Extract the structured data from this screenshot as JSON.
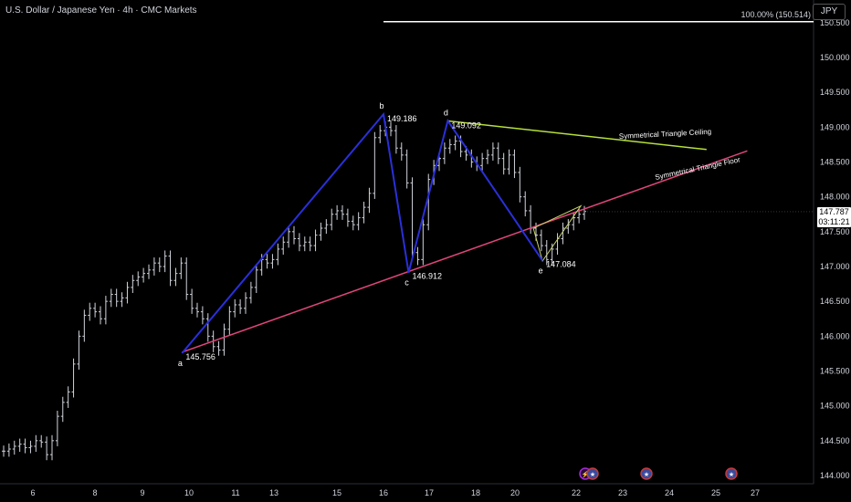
{
  "header": {
    "title": "U.S. Dollar / Japanese Yen · 4h · CMC Markets",
    "currency": "JPY",
    "top_label": "100.00% (150.514)"
  },
  "last_price": {
    "value": "147.787",
    "countdown": "03:11:21"
  },
  "colors": {
    "background": "#000000",
    "pattern": "#2a2fd8",
    "floor": "#e0457b",
    "ceiling": "#b6e03a",
    "wedge": "#c9d36a",
    "bars": "#d1d4dc",
    "axis_text": "#d1d4dc"
  },
  "chart_data": {
    "type": "ohlc",
    "title": "U.S. Dollar / Japanese Yen · 4h · CMC Markets",
    "ylim": [
      143.95,
      150.6
    ],
    "y_ticks": [
      144.0,
      144.5,
      145.0,
      145.5,
      146.0,
      146.5,
      147.0,
      147.5,
      148.0,
      148.5,
      149.0,
      149.5,
      150.0,
      150.5
    ],
    "y_tick_labels": [
      "144.000",
      "144.500",
      "145.000",
      "145.500",
      "146.000",
      "146.500",
      "147.000",
      "147.500",
      "148.000",
      "148.500",
      "149.000",
      "149.500",
      "150.000",
      "150.500"
    ],
    "x_ticks": [
      {
        "label": "6",
        "day": 6
      },
      {
        "label": "8",
        "day": 8
      },
      {
        "label": "9",
        "day": 9
      },
      {
        "label": "10",
        "day": 10
      },
      {
        "label": "11",
        "day": 11
      },
      {
        "label": "13",
        "day": 13
      },
      {
        "label": "15",
        "day": 15
      },
      {
        "label": "16",
        "day": 16
      },
      {
        "label": "17",
        "day": 17
      },
      {
        "label": "18",
        "day": 18
      },
      {
        "label": "20",
        "day": 20
      },
      {
        "label": "22",
        "day": 22
      },
      {
        "label": "23",
        "day": 23
      },
      {
        "label": "24",
        "day": 24
      },
      {
        "label": "25",
        "day": 25
      },
      {
        "label": "27",
        "day": 27
      }
    ],
    "bars_close": [
      144.35,
      144.38,
      144.42,
      144.45,
      144.4,
      144.42,
      144.5,
      144.48,
      144.3,
      144.5,
      144.85,
      145.05,
      145.2,
      145.6,
      146.0,
      146.3,
      146.4,
      146.35,
      146.25,
      146.5,
      146.6,
      146.5,
      146.55,
      146.7,
      146.8,
      146.85,
      146.9,
      146.95,
      147.05,
      147.0,
      147.15,
      146.8,
      146.9,
      147.05,
      146.6,
      146.4,
      146.35,
      146.25,
      146.0,
      145.85,
      145.8,
      146.1,
      146.35,
      146.45,
      146.4,
      146.55,
      146.7,
      146.95,
      147.1,
      147.05,
      147.1,
      147.25,
      147.35,
      147.5,
      147.4,
      147.3,
      147.35,
      147.3,
      147.45,
      147.55,
      147.6,
      147.75,
      147.8,
      147.75,
      147.65,
      147.6,
      147.7,
      147.85,
      148.05,
      148.85,
      148.95,
      149.0,
      148.95,
      148.7,
      148.6,
      148.2,
      147.2,
      147.1,
      147.6,
      148.25,
      148.45,
      148.55,
      148.7,
      148.75,
      148.8,
      148.65,
      148.6,
      148.5,
      148.45,
      148.55,
      148.6,
      148.7,
      148.55,
      148.4,
      148.6,
      148.35,
      148.0,
      147.8,
      147.55,
      147.45,
      147.3,
      147.1,
      147.25,
      147.4,
      147.55,
      147.6,
      147.7,
      147.75,
      147.79
    ],
    "labels": [
      {
        "point": "a",
        "price": "145.756"
      },
      {
        "point": "b",
        "price": "149.186"
      },
      {
        "point": "c",
        "price": "146.912"
      },
      {
        "point": "d",
        "price": "149.092"
      },
      {
        "point": "e",
        "price": "147.084"
      }
    ],
    "pattern_points": {
      "a": {
        "day": 9.85,
        "y": 145.756
      },
      "b": {
        "day": 16.0,
        "y": 149.186
      },
      "c": {
        "day": 16.55,
        "y": 146.912
      },
      "d": {
        "day": 17.4,
        "y": 149.092
      },
      "e": {
        "day": 20.9,
        "y": 147.084
      }
    },
    "annotations": [
      "Symmetrical Triangle Ceiling",
      "Symmetrical Triangle  Floor"
    ],
    "ceiling_line": [
      {
        "day": 17.4,
        "y": 149.09
      },
      {
        "day": 24.8,
        "y": 148.68
      }
    ],
    "floor_line": [
      {
        "day": 9.85,
        "y": 145.77
      },
      {
        "day": 26.6,
        "y": 148.66
      }
    ],
    "wedge": [
      {
        "day": 20.6,
        "y": 147.55
      },
      {
        "day": 20.9,
        "y": 147.08
      },
      {
        "day": 22.1,
        "y": 147.87
      }
    ],
    "top_line": {
      "y": 150.514
    },
    "events": [
      "lightning-icon",
      "us-flag-icon",
      "us-flag-icon",
      "us-flag-icon"
    ]
  }
}
